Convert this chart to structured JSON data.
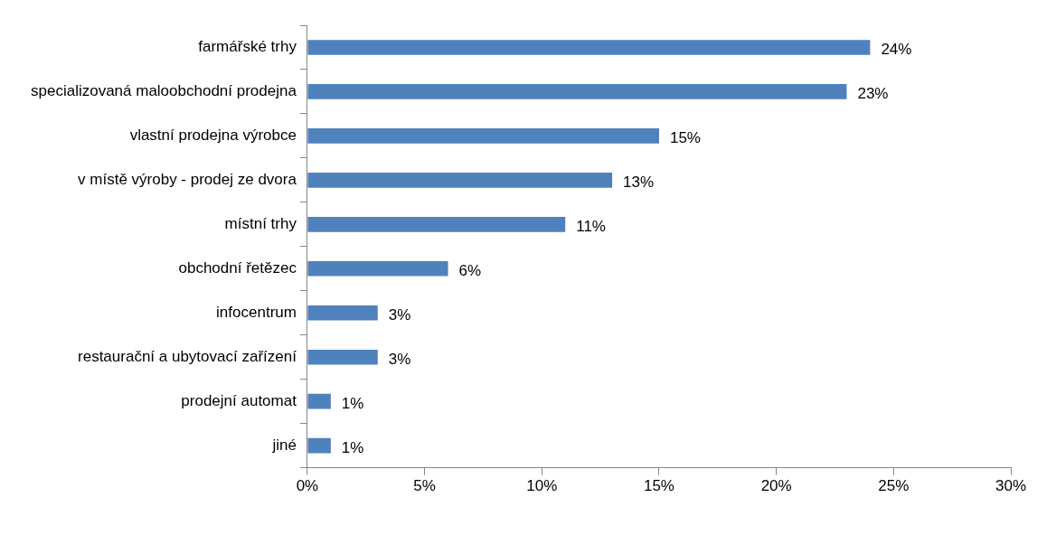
{
  "chart_data": {
    "type": "bar",
    "orientation": "horizontal",
    "categories": [
      "farmářské trhy",
      "specializovaná maloobchodní prodejna",
      "vlastní prodejna výrobce",
      "v místě výroby - prodej ze dvora",
      "místní trhy",
      "obchodní řetězec",
      "infocentrum",
      "restaurační a ubytovací zařízení",
      "prodejní automat",
      "jiné"
    ],
    "values": [
      24,
      23,
      15,
      13,
      11,
      6,
      3,
      3,
      1,
      1
    ],
    "value_labels": [
      "24%",
      "23%",
      "15%",
      "13%",
      "11%",
      "6%",
      "3%",
      "3%",
      "1%",
      "1%"
    ],
    "color": "#4f81bd",
    "xlim": [
      0,
      30
    ],
    "xticks": [
      {
        "value": 0,
        "label": "0%"
      },
      {
        "value": 5,
        "label": "5%"
      },
      {
        "value": 10,
        "label": "10%"
      },
      {
        "value": 15,
        "label": "15%"
      },
      {
        "value": 20,
        "label": "20%"
      },
      {
        "value": 25,
        "label": "25%"
      },
      {
        "value": 30,
        "label": "30%"
      }
    ],
    "grid": false,
    "legend": false
  }
}
